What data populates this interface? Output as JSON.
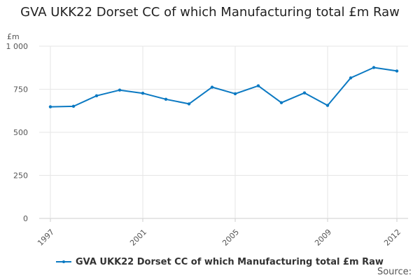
{
  "chart_data": {
    "type": "line",
    "title": "GVA UKK22 Dorset CC of which Manufacturing total £m Raw",
    "ylabel": "£m",
    "xlabel": "",
    "x": [
      1997,
      1998,
      1999,
      2000,
      2001,
      2002,
      2003,
      2004,
      2005,
      2006,
      2007,
      2008,
      2009,
      2010,
      2011,
      2012
    ],
    "x_tick_labels": [
      "1997",
      "2001",
      "2005",
      "2009",
      "2012"
    ],
    "x_tick_values": [
      1997,
      2001,
      2005,
      2009,
      2012
    ],
    "y_tick_labels": [
      "0",
      "250",
      "500",
      "750",
      "1 000"
    ],
    "y_tick_values": [
      0,
      250,
      500,
      750,
      1000
    ],
    "ylim": [
      0,
      1000
    ],
    "grid": true,
    "legend_position": "bottom",
    "series": [
      {
        "name": "GVA UKK22 Dorset CC of which Manufacturing total £m Raw",
        "color": "#0b79c2",
        "values": [
          648,
          651,
          712,
          745,
          727,
          692,
          665,
          762,
          724,
          770,
          672,
          729,
          656,
          816,
          876,
          856
        ]
      }
    ]
  },
  "footer": {
    "source_label": "Source:"
  }
}
